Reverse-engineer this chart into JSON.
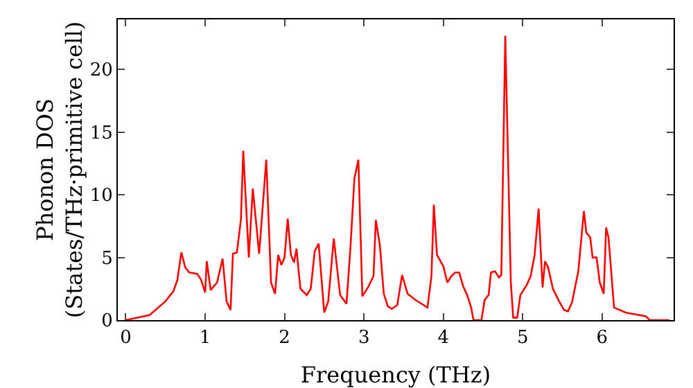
{
  "chart_data": {
    "type": "line",
    "xlabel": "Frequency (THz)",
    "ylabel": "Phonon DOS\n(States/THz·primitive cell)",
    "xlim": [
      -0.1,
      6.9
    ],
    "ylim": [
      0,
      24
    ],
    "xticks": [
      0,
      1,
      2,
      3,
      4,
      5,
      6
    ],
    "yticks": [
      0,
      5,
      10,
      15,
      20
    ],
    "grid": false,
    "legend": false,
    "marker": "none",
    "line_style": "solid",
    "x": [
      0,
      0.3,
      0.5,
      0.6,
      0.65,
      0.7,
      0.75,
      0.8,
      0.9,
      0.95,
      1.0,
      1.02,
      1.07,
      1.15,
      1.22,
      1.27,
      1.32,
      1.35,
      1.4,
      1.45,
      1.48,
      1.55,
      1.6,
      1.68,
      1.77,
      1.83,
      1.88,
      1.92,
      1.96,
      2.0,
      2.04,
      2.08,
      2.12,
      2.15,
      2.2,
      2.28,
      2.33,
      2.38,
      2.43,
      2.5,
      2.55,
      2.62,
      2.7,
      2.78,
      2.83,
      2.88,
      2.93,
      2.98,
      3.05,
      3.12,
      3.15,
      3.2,
      3.25,
      3.3,
      3.35,
      3.42,
      3.48,
      3.55,
      3.65,
      3.8,
      3.85,
      3.88,
      3.92,
      4.0,
      4.05,
      4.1,
      4.15,
      4.2,
      4.25,
      4.3,
      4.35,
      4.38,
      4.45,
      4.48,
      4.52,
      4.57,
      4.6,
      4.65,
      4.7,
      4.73,
      4.78,
      4.85,
      4.88,
      4.93,
      4.97,
      5.05,
      5.1,
      5.15,
      5.2,
      5.25,
      5.28,
      5.32,
      5.38,
      5.45,
      5.52,
      5.57,
      5.62,
      5.7,
      5.77,
      5.8,
      5.85,
      5.88,
      5.93,
      5.97,
      6.02,
      6.05,
      6.08,
      6.15,
      6.3,
      6.55,
      6.6,
      6.85
    ],
    "series": [
      {
        "color": "#ff0000",
        "values": [
          0,
          0.4,
          1.5,
          2.3,
          3.2,
          5.4,
          4.2,
          3.8,
          3.7,
          3.2,
          2.2,
          4.7,
          2.4,
          3.0,
          4.9,
          1.5,
          0.8,
          5.3,
          5.4,
          8.0,
          13.5,
          5.0,
          10.5,
          5.3,
          12.8,
          3.0,
          2.1,
          5.2,
          4.4,
          5.0,
          8.1,
          5.2,
          4.6,
          5.7,
          2.5,
          2.0,
          2.5,
          5.5,
          6.1,
          0.6,
          1.5,
          6.5,
          2.0,
          1.3,
          5.8,
          11.3,
          12.8,
          1.9,
          2.6,
          3.5,
          8.0,
          6.0,
          2.1,
          1.1,
          0.9,
          1.2,
          3.6,
          2.1,
          1.6,
          1.0,
          3.5,
          9.2,
          5.2,
          4.3,
          3.0,
          3.5,
          3.8,
          3.8,
          2.7,
          2.0,
          1.0,
          0,
          0,
          0,
          1.6,
          2.0,
          3.8,
          3.9,
          3.4,
          3.6,
          22.7,
          3.0,
          0.2,
          0.2,
          2.0,
          2.8,
          3.5,
          5.2,
          8.9,
          2.6,
          4.7,
          4.2,
          2.5,
          1.6,
          0.8,
          0.7,
          1.4,
          3.9,
          8.7,
          7.0,
          6.6,
          5.0,
          5.0,
          3.0,
          2.1,
          7.4,
          6.6,
          1.0,
          0.6,
          0.3,
          0,
          0
        ]
      }
    ]
  }
}
